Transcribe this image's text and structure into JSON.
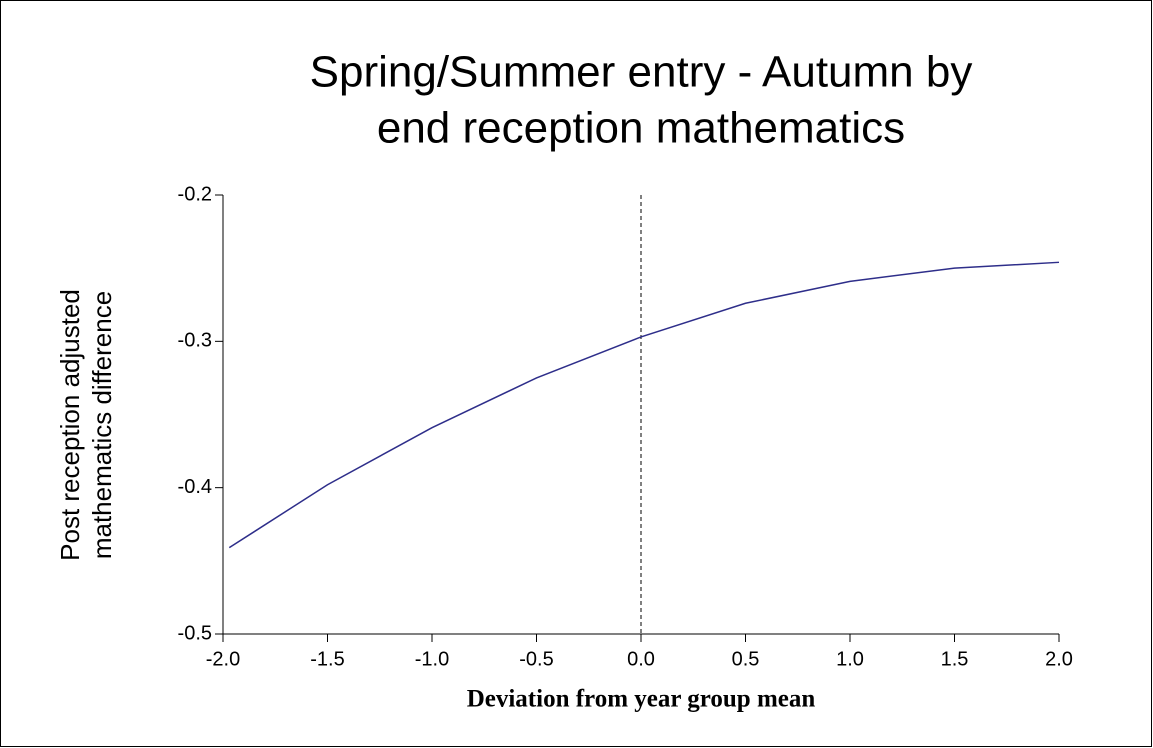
{
  "chart_data": {
    "type": "line",
    "title": [
      "Spring/Summer entry - Autumn by",
      "end reception mathematics"
    ],
    "xlabel": "Deviation from year group mean",
    "ylabel": [
      "Post reception adjusted",
      "mathematics difference"
    ],
    "x": [
      -1.97,
      -1.5,
      -1.0,
      -0.5,
      0.0,
      0.5,
      1.0,
      1.5,
      2.0
    ],
    "series": [
      {
        "color": "#2e2e8a",
        "values": [
          -0.441,
          -0.398,
          -0.359,
          -0.325,
          -0.297,
          -0.274,
          -0.259,
          -0.25,
          -0.246
        ]
      }
    ],
    "xlim": [
      -2,
      2
    ],
    "xticks": [
      {
        "value": -2,
        "label": "-2.0"
      },
      -1.5,
      {
        "value": -1,
        "label": "-1.0"
      },
      -0.5,
      {
        "value": 0,
        "label": "0.0"
      },
      0.5,
      {
        "value": 1,
        "label": "1.0"
      },
      1.5,
      {
        "value": 2,
        "label": "2.0"
      }
    ],
    "ylim": [
      -0.5,
      -0.2
    ],
    "yticks": [
      -0.5,
      -0.4,
      -0.3,
      -0.2
    ],
    "vline": 0
  }
}
